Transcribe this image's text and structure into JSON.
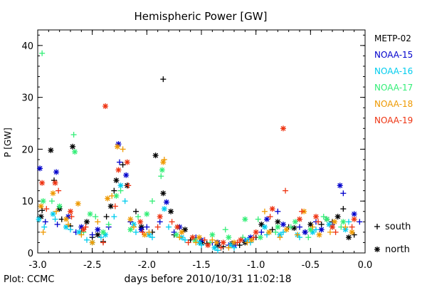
{
  "chart_data": {
    "type": "scatter",
    "title": "Hemispheric Power [GW]",
    "xlabel": "days before 2010/10/31 11:02:18",
    "ylabel": "P [GW]",
    "xlim": [
      -3.0,
      0.0
    ],
    "ylim": [
      0,
      43
    ],
    "xticks": [
      -3.0,
      -2.5,
      -2.0,
      -1.5,
      -1.0,
      -0.5,
      0.0
    ],
    "xtick_labels": [
      "-3.0",
      "-2.5",
      "-2.0",
      "-1.5",
      "-1.0",
      "-0.5",
      "0.0"
    ],
    "yticks": [
      0,
      10,
      20,
      30,
      40
    ],
    "ytick_labels": [
      "0",
      "10",
      "20",
      "30",
      "40"
    ],
    "grid": false,
    "legend_position": "right",
    "footer": "Plot: CCMC",
    "marker_legend": [
      {
        "symbol": "+",
        "label": "south"
      },
      {
        "symbol": "*",
        "label": "north"
      }
    ],
    "series": [
      {
        "name": "METP-02",
        "color": "#000000",
        "south": [
          [
            -2.96,
            8.2
          ],
          [
            -2.85,
            14
          ],
          [
            -2.78,
            6.5
          ],
          [
            -2.7,
            5.2
          ],
          [
            -2.6,
            4
          ],
          [
            -2.5,
            3
          ],
          [
            -2.4,
            2.2
          ],
          [
            -2.37,
            7
          ],
          [
            -2.3,
            12
          ],
          [
            -2.22,
            17
          ],
          [
            -2.1,
            8
          ],
          [
            -1.95,
            4
          ],
          [
            -1.85,
            33.5
          ],
          [
            -1.75,
            3.5
          ],
          [
            -1.6,
            2.5
          ],
          [
            -1.45,
            1.8
          ],
          [
            -1.3,
            1.2
          ],
          [
            -1.15,
            1.5
          ],
          [
            -1.0,
            3
          ],
          [
            -0.85,
            4.5
          ],
          [
            -0.7,
            5
          ],
          [
            -0.55,
            4
          ],
          [
            -0.4,
            5.5
          ],
          [
            -0.3,
            6
          ],
          [
            -0.2,
            8.5
          ],
          [
            -0.1,
            3.5
          ]
        ],
        "north": [
          [
            -2.97,
            7
          ],
          [
            -2.88,
            19.8
          ],
          [
            -2.8,
            8.5
          ],
          [
            -2.68,
            20.5
          ],
          [
            -2.55,
            6
          ],
          [
            -2.45,
            3.5
          ],
          [
            -2.33,
            9
          ],
          [
            -2.28,
            14
          ],
          [
            -2.18,
            13
          ],
          [
            -2.05,
            5
          ],
          [
            -1.92,
            18.8
          ],
          [
            -1.85,
            11.5
          ],
          [
            -1.78,
            8
          ],
          [
            -1.65,
            4.5
          ],
          [
            -1.5,
            2
          ],
          [
            -1.35,
            1.5
          ],
          [
            -1.22,
            1.8
          ],
          [
            -1.1,
            2
          ],
          [
            -0.95,
            5.5
          ],
          [
            -0.8,
            6
          ],
          [
            -0.65,
            4.8
          ],
          [
            -0.5,
            5.5
          ],
          [
            -0.35,
            6.5
          ],
          [
            -0.25,
            7
          ],
          [
            -0.15,
            3
          ]
        ]
      },
      {
        "name": "NOAA-15",
        "color": "#0000cc",
        "south": [
          [
            -2.93,
            6
          ],
          [
            -2.82,
            5.5
          ],
          [
            -2.65,
            4
          ],
          [
            -2.5,
            3.5
          ],
          [
            -2.35,
            5
          ],
          [
            -2.25,
            17.5
          ],
          [
            -2.15,
            6
          ],
          [
            -2.0,
            5
          ],
          [
            -1.88,
            6
          ],
          [
            -1.75,
            4
          ],
          [
            -1.55,
            3
          ],
          [
            -1.4,
            2
          ],
          [
            -1.25,
            1.5
          ],
          [
            -1.1,
            2.5
          ],
          [
            -0.95,
            4
          ],
          [
            -0.8,
            8
          ],
          [
            -0.6,
            5
          ],
          [
            -0.45,
            6
          ],
          [
            -0.3,
            5.5
          ],
          [
            -0.2,
            11.5
          ],
          [
            -0.05,
            6
          ]
        ],
        "north": [
          [
            -2.98,
            16.3
          ],
          [
            -2.83,
            15.6
          ],
          [
            -2.72,
            7
          ],
          [
            -2.6,
            5
          ],
          [
            -2.45,
            4.5
          ],
          [
            -2.26,
            21
          ],
          [
            -2.19,
            15
          ],
          [
            -2.05,
            4.5
          ],
          [
            -1.82,
            9.8
          ],
          [
            -1.7,
            5
          ],
          [
            -1.5,
            2.5
          ],
          [
            -1.35,
            2
          ],
          [
            -1.2,
            1.5
          ],
          [
            -1.05,
            3
          ],
          [
            -0.9,
            6.5
          ],
          [
            -0.75,
            5.5
          ],
          [
            -0.55,
            4
          ],
          [
            -0.4,
            4.5
          ],
          [
            -0.23,
            13
          ],
          [
            -0.1,
            7.5
          ]
        ]
      },
      {
        "name": "NOAA-16",
        "color": "#00ccee",
        "south": [
          [
            -2.94,
            5
          ],
          [
            -2.84,
            6.5
          ],
          [
            -2.7,
            4.5
          ],
          [
            -2.55,
            2.5
          ],
          [
            -2.42,
            3
          ],
          [
            -2.3,
            7
          ],
          [
            -2.2,
            10
          ],
          [
            -2.1,
            4
          ],
          [
            -1.95,
            3
          ],
          [
            -1.8,
            5
          ],
          [
            -1.65,
            2.5
          ],
          [
            -1.5,
            1.5
          ],
          [
            -1.35,
            0.5
          ],
          [
            -1.2,
            1
          ],
          [
            -1.05,
            2
          ],
          [
            -0.9,
            3.5
          ],
          [
            -0.75,
            4
          ],
          [
            -0.6,
            3
          ],
          [
            -0.45,
            4.5
          ],
          [
            -0.3,
            5
          ],
          [
            -0.15,
            6
          ]
        ],
        "north": [
          [
            -2.99,
            6.5
          ],
          [
            -2.86,
            7.5
          ],
          [
            -2.74,
            5
          ],
          [
            -2.62,
            4
          ],
          [
            -2.5,
            2
          ],
          [
            -2.38,
            3.5
          ],
          [
            -2.24,
            13
          ],
          [
            -2.12,
            5.5
          ],
          [
            -1.98,
            3.5
          ],
          [
            -1.84,
            8.5
          ],
          [
            -1.68,
            3
          ],
          [
            -1.52,
            2
          ],
          [
            -1.38,
            1
          ],
          [
            -1.23,
            1.5
          ],
          [
            -1.08,
            2.5
          ],
          [
            -0.92,
            5
          ],
          [
            -0.78,
            3.5
          ],
          [
            -0.62,
            3.5
          ],
          [
            -0.48,
            4
          ],
          [
            -0.33,
            5.5
          ],
          [
            -0.18,
            4.5
          ]
        ]
      },
      {
        "name": "NOAA-17",
        "color": "#33ee77",
        "south": [
          [
            -2.96,
            38.5
          ],
          [
            -2.87,
            10
          ],
          [
            -2.67,
            22.8
          ],
          [
            -2.58,
            4
          ],
          [
            -2.47,
            7
          ],
          [
            -2.35,
            5.5
          ],
          [
            -2.24,
            12
          ],
          [
            -2.08,
            7
          ],
          [
            -1.95,
            10
          ],
          [
            -1.87,
            14.8
          ],
          [
            -1.72,
            5
          ],
          [
            -1.58,
            3
          ],
          [
            -1.42,
            2
          ],
          [
            -1.28,
            4.5
          ],
          [
            -1.12,
            3
          ],
          [
            -0.98,
            6.5
          ],
          [
            -0.82,
            4
          ],
          [
            -0.68,
            5
          ],
          [
            -0.52,
            3
          ],
          [
            -0.38,
            7
          ],
          [
            -0.22,
            5
          ]
        ],
        "north": [
          [
            -2.95,
            10
          ],
          [
            -2.8,
            9
          ],
          [
            -2.66,
            19.5
          ],
          [
            -2.52,
            7.5
          ],
          [
            -2.4,
            4
          ],
          [
            -2.28,
            11
          ],
          [
            -2.15,
            4.5
          ],
          [
            -2.0,
            7.5
          ],
          [
            -1.86,
            16
          ],
          [
            -1.73,
            3.5
          ],
          [
            -1.56,
            2.5
          ],
          [
            -1.4,
            3.5
          ],
          [
            -1.25,
            3
          ],
          [
            -1.1,
            6.5
          ],
          [
            -0.96,
            3
          ],
          [
            -0.8,
            5
          ],
          [
            -0.64,
            6
          ],
          [
            -0.5,
            4.5
          ],
          [
            -0.35,
            6.5
          ],
          [
            -0.2,
            6
          ]
        ]
      },
      {
        "name": "NOAA-18",
        "color": "#ee9900",
        "south": [
          [
            -2.95,
            4
          ],
          [
            -2.83,
            8
          ],
          [
            -2.72,
            5.5
          ],
          [
            -2.6,
            3.5
          ],
          [
            -2.45,
            6
          ],
          [
            -2.32,
            11
          ],
          [
            -2.22,
            20
          ],
          [
            -2.12,
            5
          ],
          [
            -1.98,
            4
          ],
          [
            -1.84,
            18
          ],
          [
            -1.7,
            3
          ],
          [
            -1.55,
            2
          ],
          [
            -1.4,
            2.5
          ],
          [
            -1.25,
            1
          ],
          [
            -1.08,
            2
          ],
          [
            -0.92,
            8
          ],
          [
            -0.78,
            3
          ],
          [
            -0.62,
            3.5
          ],
          [
            -0.48,
            5
          ],
          [
            -0.32,
            4
          ],
          [
            -0.18,
            5
          ]
        ],
        "north": [
          [
            -2.97,
            9
          ],
          [
            -2.86,
            11.5
          ],
          [
            -2.74,
            6.5
          ],
          [
            -2.63,
            9.5
          ],
          [
            -2.5,
            2
          ],
          [
            -2.36,
            10.5
          ],
          [
            -2.27,
            20.5
          ],
          [
            -2.15,
            6.5
          ],
          [
            -2.02,
            3.5
          ],
          [
            -1.85,
            17.5
          ],
          [
            -1.68,
            4
          ],
          [
            -1.52,
            3
          ],
          [
            -1.36,
            2
          ],
          [
            -1.2,
            2
          ],
          [
            -1.04,
            2.5
          ],
          [
            -0.88,
            4
          ],
          [
            -0.72,
            4.5
          ],
          [
            -0.56,
            8
          ],
          [
            -0.42,
            3.5
          ],
          [
            -0.28,
            6
          ],
          [
            -0.12,
            4
          ]
        ]
      },
      {
        "name": "NOAA-19",
        "color": "#ee3311",
        "south": [
          [
            -2.92,
            8.5
          ],
          [
            -2.81,
            12
          ],
          [
            -2.69,
            7
          ],
          [
            -2.56,
            5
          ],
          [
            -2.4,
            2
          ],
          [
            -2.29,
            9
          ],
          [
            -2.17,
            13
          ],
          [
            -2.04,
            4
          ],
          [
            -1.9,
            5
          ],
          [
            -1.77,
            6
          ],
          [
            -1.62,
            2
          ],
          [
            -1.47,
            2.5
          ],
          [
            -1.32,
            1
          ],
          [
            -1.17,
            2
          ],
          [
            -1.02,
            3
          ],
          [
            -0.87,
            7
          ],
          [
            -0.73,
            12
          ],
          [
            -0.58,
            8
          ],
          [
            -0.43,
            6
          ],
          [
            -0.27,
            4
          ],
          [
            -0.12,
            5
          ]
        ],
        "north": [
          [
            -2.96,
            13.5
          ],
          [
            -2.84,
            13.5
          ],
          [
            -2.7,
            8
          ],
          [
            -2.58,
            4.5
          ],
          [
            -2.38,
            28.3
          ],
          [
            -2.26,
            16
          ],
          [
            -2.18,
            17.5
          ],
          [
            -2.06,
            6
          ],
          [
            -1.88,
            7
          ],
          [
            -1.72,
            5
          ],
          [
            -1.58,
            3
          ],
          [
            -1.44,
            1.5
          ],
          [
            -1.3,
            2
          ],
          [
            -1.14,
            2.5
          ],
          [
            -1.0,
            4
          ],
          [
            -0.85,
            8.5
          ],
          [
            -0.75,
            24
          ],
          [
            -0.6,
            6.5
          ],
          [
            -0.45,
            7
          ],
          [
            -0.3,
            5
          ],
          [
            -0.1,
            6.5
          ]
        ]
      }
    ]
  }
}
